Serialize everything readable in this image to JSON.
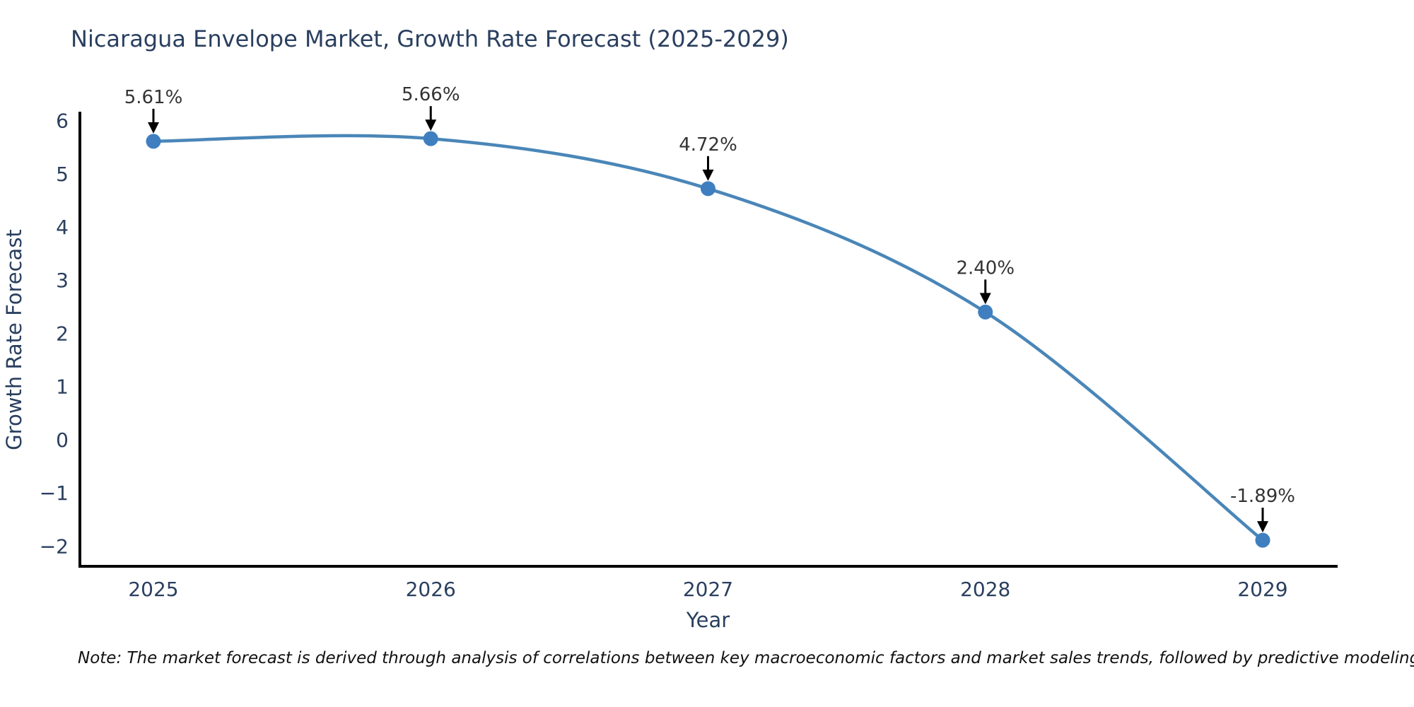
{
  "title": "Nicaragua Envelope Market, Growth Rate Forecast (2025-2029)",
  "note": "Note: The market forecast is derived through analysis of correlations between key macroeconomic factors and market sales trends, followed by predictive modeling to project future sales",
  "chart_data": {
    "type": "line",
    "title": "Nicaragua Envelope Market, Growth Rate Forecast (2025-2029)",
    "xlabel": "Year",
    "ylabel": "Growth Rate Forecast",
    "x": [
      "2025",
      "2026",
      "2027",
      "2028",
      "2029"
    ],
    "series": [
      {
        "name": "Growth Rate Forecast",
        "values": [
          5.61,
          5.66,
          4.72,
          2.4,
          -1.89
        ]
      }
    ],
    "point_labels": [
      "5.61%",
      "5.66%",
      "4.72%",
      "2.40%",
      "-1.89%"
    ],
    "ytick_values": [
      6,
      5,
      4,
      3,
      2,
      1,
      0,
      -1,
      -2
    ],
    "ytick_labels": [
      "6",
      "5",
      "4",
      "3",
      "2",
      "1",
      "0",
      "−1",
      "−2"
    ],
    "ylim": [
      -2.38,
      6.14
    ],
    "grid": false,
    "legend_position": "none",
    "marker_style": "circle",
    "annotation_style": "value-label-with-down-arrow",
    "colors": {
      "line": "#4a86b8",
      "marker": "#3f7fbf",
      "axis": "#000000",
      "axis_text": "#2a3f5f",
      "annotation_text": "#333333",
      "background": "#ffffff"
    }
  }
}
